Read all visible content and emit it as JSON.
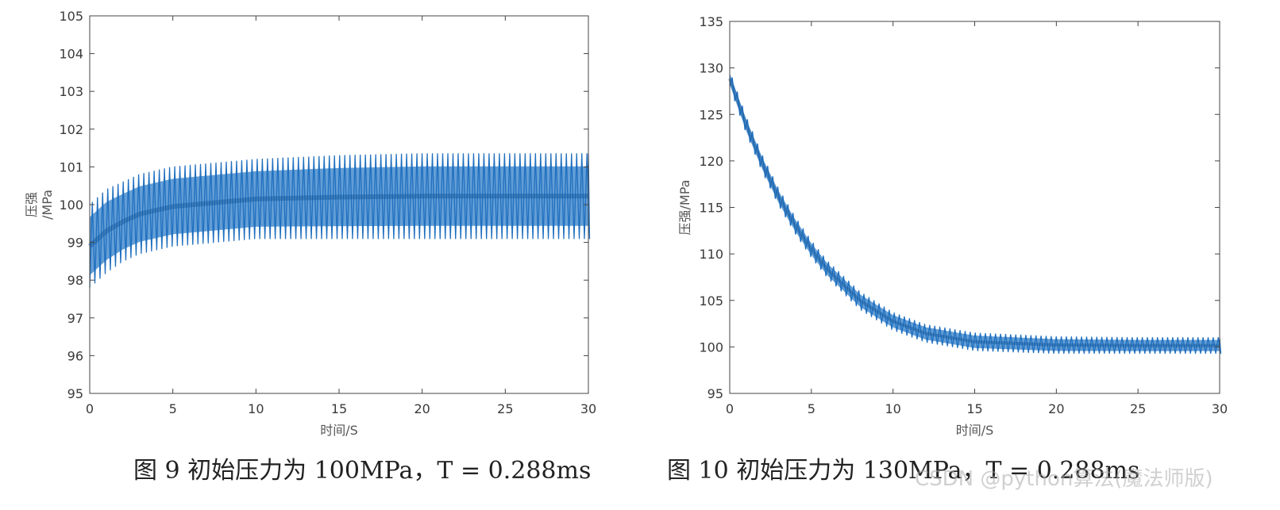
{
  "chart_data": [
    {
      "type": "line",
      "xlabel": "时间/S",
      "ylabel_line1": "压强",
      "ylabel_line2": "/MPa",
      "xlim": [
        0,
        30
      ],
      "ylim": [
        95,
        105
      ],
      "xticks": [
        0,
        5,
        10,
        15,
        20,
        25,
        30
      ],
      "yticks": [
        95,
        96,
        97,
        98,
        99,
        100,
        101,
        102,
        103,
        104,
        105
      ],
      "grid": false,
      "series_color": "#1f6fbf",
      "series": [
        {
          "x": [
            0,
            1,
            2,
            3,
            5,
            7.5,
            10,
            15,
            20,
            25,
            30
          ],
          "upper": [
            100.0,
            100.4,
            100.6,
            100.8,
            101.0,
            101.1,
            101.2,
            101.3,
            101.35,
            101.35,
            101.35
          ],
          "lower": [
            97.8,
            98.2,
            98.5,
            98.7,
            98.9,
            99.0,
            99.1,
            99.1,
            99.1,
            99.1,
            99.1
          ]
        }
      ],
      "caption": "图 9  初始压力为 100MPa，T = 0.288ms"
    },
    {
      "type": "line",
      "xlabel": "时间/S",
      "ylabel": "压强/MPa",
      "xlim": [
        0,
        30
      ],
      "ylim": [
        95,
        135
      ],
      "xticks": [
        0,
        5,
        10,
        15,
        20,
        25,
        30
      ],
      "yticks": [
        95,
        100,
        105,
        110,
        115,
        120,
        125,
        130,
        135
      ],
      "grid": false,
      "series_color": "#1f6fbf",
      "series": [
        {
          "x": [
            0,
            1,
            2,
            3,
            4,
            5,
            6,
            8,
            10,
            12,
            15,
            20,
            25,
            30
          ],
          "upper": [
            129.7,
            124.8,
            120.6,
            117.0,
            114.0,
            111.4,
            109.2,
            105.9,
            103.7,
            102.4,
            101.5,
            101.1,
            101.0,
            101.0
          ],
          "lower": [
            128.0,
            123.0,
            118.8,
            115.2,
            112.2,
            109.6,
            107.4,
            104.0,
            101.8,
            100.5,
            99.6,
            99.3,
            99.3,
            99.3
          ]
        }
      ],
      "caption": "图 10  初始压力为 130MPa，T = 0.288ms"
    }
  ],
  "watermark": "CSDN @python算法(魔法师版)"
}
